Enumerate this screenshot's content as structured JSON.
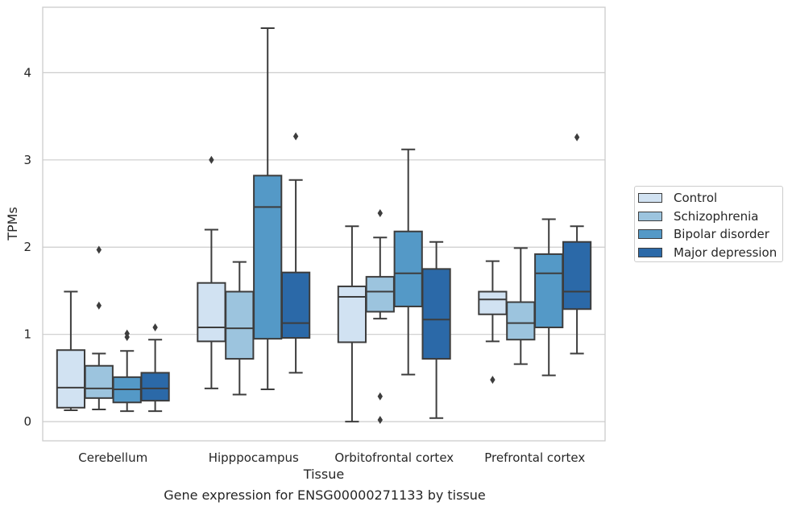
{
  "chart_data": {
    "type": "box",
    "xlabel": "Tissue",
    "ylabel": "TPMs",
    "caption": "Gene expression for ENSG00000271133 by tissue",
    "ylim": [
      -0.22,
      4.75
    ],
    "yticks": [
      "0",
      "1",
      "2",
      "3",
      "4"
    ],
    "grid": "horizontal",
    "legend_position": "right",
    "categories": [
      "Cerebellum",
      "Hipppocampus",
      "Orbitofrontal cortex",
      "Prefrontal cortex"
    ],
    "series": [
      {
        "name": "Control",
        "color": "#d1e2f2",
        "boxes": [
          {
            "whisker_low": 0.13,
            "q1": 0.16,
            "median": 0.39,
            "q3": 0.82,
            "whisker_high": 1.49,
            "outliers": []
          },
          {
            "whisker_low": 0.38,
            "q1": 0.92,
            "median": 1.08,
            "q3": 1.59,
            "whisker_high": 2.2,
            "outliers": [
              3.0
            ]
          },
          {
            "whisker_low": 0.0,
            "q1": 0.91,
            "median": 1.43,
            "q3": 1.55,
            "whisker_high": 2.24,
            "outliers": []
          },
          {
            "whisker_low": 0.92,
            "q1": 1.23,
            "median": 1.4,
            "q3": 1.49,
            "whisker_high": 1.84,
            "outliers": [
              0.48
            ]
          }
        ]
      },
      {
        "name": "Schizophrenia",
        "color": "#9cc4de",
        "boxes": [
          {
            "whisker_low": 0.14,
            "q1": 0.27,
            "median": 0.38,
            "q3": 0.64,
            "whisker_high": 0.78,
            "outliers": [
              1.97,
              1.33
            ]
          },
          {
            "whisker_low": 0.31,
            "q1": 0.72,
            "median": 1.07,
            "q3": 1.49,
            "whisker_high": 1.83,
            "outliers": []
          },
          {
            "whisker_low": 1.18,
            "q1": 1.26,
            "median": 1.49,
            "q3": 1.66,
            "whisker_high": 2.11,
            "outliers": [
              2.39,
              0.29,
              0.02
            ]
          },
          {
            "whisker_low": 0.66,
            "q1": 0.94,
            "median": 1.13,
            "q3": 1.37,
            "whisker_high": 1.99,
            "outliers": []
          }
        ]
      },
      {
        "name": "Bipolar disorder",
        "color": "#5499c7",
        "boxes": [
          {
            "whisker_low": 0.12,
            "q1": 0.22,
            "median": 0.37,
            "q3": 0.51,
            "whisker_high": 0.81,
            "outliers": [
              1.01,
              0.97
            ]
          },
          {
            "whisker_low": 0.37,
            "q1": 0.95,
            "median": 2.46,
            "q3": 2.82,
            "whisker_high": 4.51,
            "outliers": []
          },
          {
            "whisker_low": 0.54,
            "q1": 1.32,
            "median": 1.7,
            "q3": 2.18,
            "whisker_high": 3.12,
            "outliers": []
          },
          {
            "whisker_low": 0.53,
            "q1": 1.08,
            "median": 1.7,
            "q3": 1.92,
            "whisker_high": 2.32,
            "outliers": []
          }
        ]
      },
      {
        "name": "Major depression",
        "color": "#2b69a8",
        "boxes": [
          {
            "whisker_low": 0.12,
            "q1": 0.24,
            "median": 0.38,
            "q3": 0.56,
            "whisker_high": 0.94,
            "outliers": [
              1.08
            ]
          },
          {
            "whisker_low": 0.56,
            "q1": 0.96,
            "median": 1.13,
            "q3": 1.71,
            "whisker_high": 2.77,
            "outliers": [
              3.27
            ]
          },
          {
            "whisker_low": 0.04,
            "q1": 0.72,
            "median": 1.17,
            "q3": 1.75,
            "whisker_high": 2.06,
            "outliers": []
          },
          {
            "whisker_low": 0.78,
            "q1": 1.29,
            "median": 1.49,
            "q3": 2.06,
            "whisker_high": 2.24,
            "outliers": [
              3.26
            ]
          }
        ]
      }
    ]
  }
}
